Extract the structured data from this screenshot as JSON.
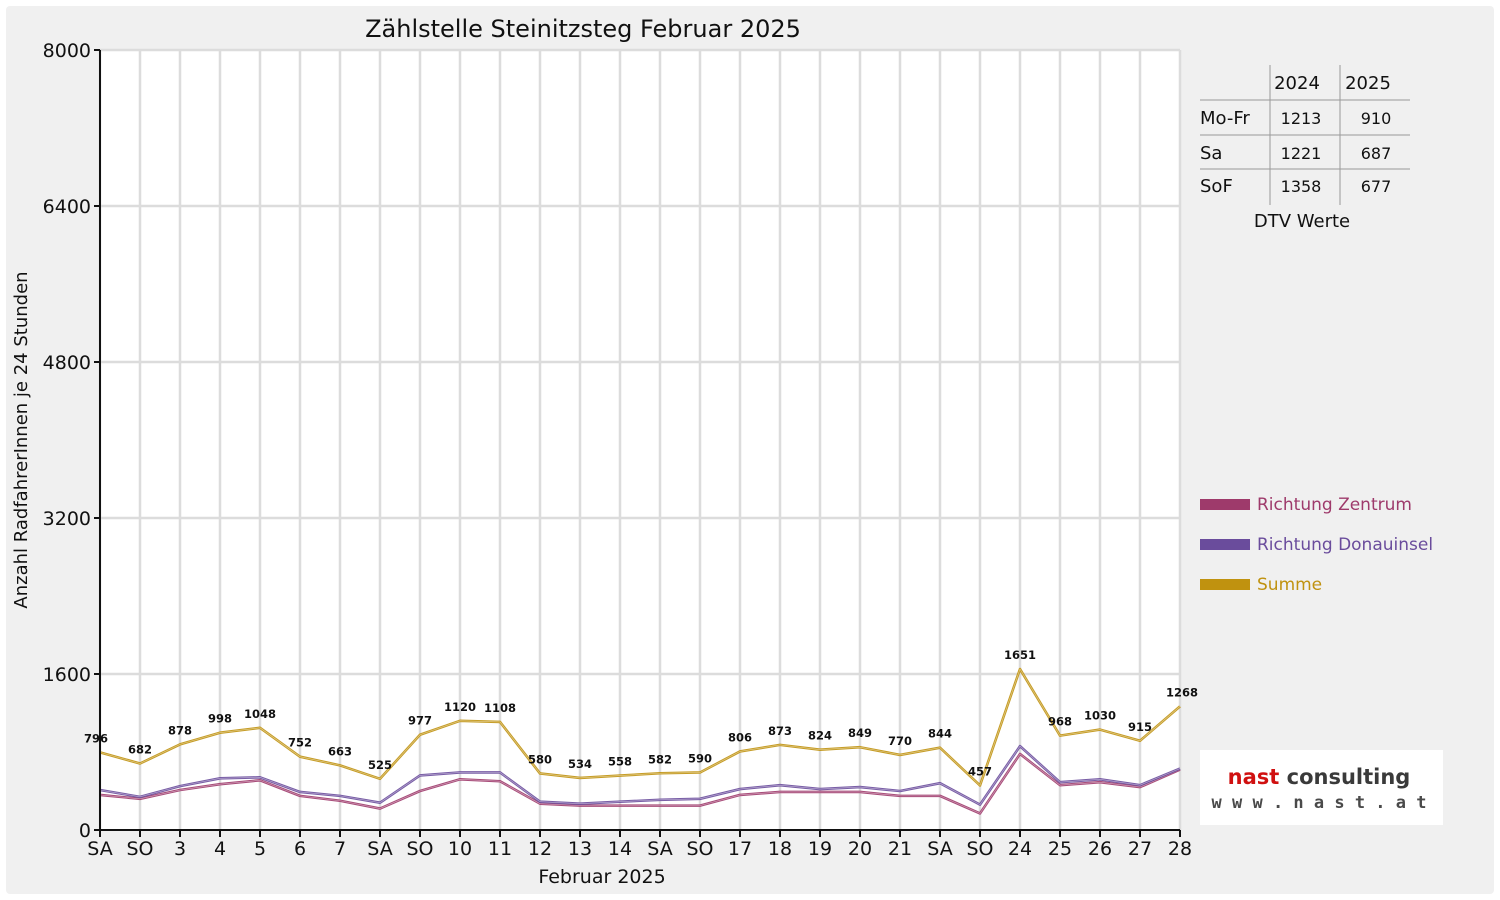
{
  "chart_data": {
    "type": "line",
    "title": "Zählstelle Steinitzsteg Februar 2025",
    "xlabel": "Februar 2025",
    "ylabel": "Anzahl RadfahrerInnen je 24 Stunden",
    "ylim": [
      0,
      8000
    ],
    "yticks": [
      "0",
      "1600",
      "3200",
      "4800",
      "6400",
      "8000"
    ],
    "grid": true,
    "legend_position": "right",
    "categories": [
      "SA",
      "SO",
      "3",
      "4",
      "5",
      "6",
      "7",
      "SA",
      "SO",
      "10",
      "11",
      "12",
      "13",
      "14",
      "SA",
      "SO",
      "17",
      "18",
      "19",
      "20",
      "21",
      "SA",
      "SO",
      "24",
      "25",
      "26",
      "27",
      "28"
    ],
    "weekend_color": "#e00000",
    "weekday_color": "#111111",
    "series": [
      {
        "name": "Richtung Zentrum",
        "color": "#9e3a6b",
        "values": [
          360,
          320,
          410,
          470,
          510,
          350,
          300,
          220,
          400,
          520,
          500,
          270,
          250,
          250,
          250,
          250,
          360,
          390,
          390,
          390,
          350,
          350,
          170,
          780,
          460,
          490,
          440,
          620
        ]
      },
      {
        "name": "Richtung Donauinsel",
        "color": "#6a4c9c",
        "values": [
          410,
          340,
          450,
          530,
          540,
          390,
          350,
          280,
          560,
          590,
          590,
          290,
          270,
          290,
          310,
          320,
          420,
          460,
          420,
          440,
          400,
          480,
          260,
          860,
          490,
          520,
          460,
          630
        ]
      },
      {
        "name": "Summe",
        "color": "#c0920f",
        "values": [
          796,
          682,
          878,
          998,
          1048,
          752,
          663,
          525,
          977,
          1120,
          1108,
          580,
          534,
          558,
          582,
          590,
          806,
          873,
          824,
          849,
          770,
          844,
          457,
          1651,
          968,
          1030,
          915,
          1268
        ]
      }
    ],
    "data_labels": [
      "796",
      "682",
      "878",
      "998",
      "1048",
      "752",
      "663",
      "525",
      "977",
      "1120",
      "1108",
      "580",
      "534",
      "558",
      "582",
      "590",
      "806",
      "873",
      "824",
      "849",
      "770",
      "844",
      "457",
      "1651",
      "968",
      "1030",
      "915",
      "1268"
    ]
  },
  "dtv_table": {
    "columns": [
      "2024",
      "2025"
    ],
    "rows": [
      {
        "label": "Mo-Fr",
        "v2024": "1213",
        "v2025": "910"
      },
      {
        "label": "Sa",
        "v2024": "1221",
        "v2025": "687"
      },
      {
        "label": "SoF",
        "v2024": "1358",
        "v2025": "677"
      }
    ],
    "caption": "DTV Werte"
  },
  "logo": {
    "text_main": "nast consulting",
    "text_sub": "w w w . n a s t . a t",
    "color_dark": "#3a3a3a",
    "color_accent": "#d01010"
  }
}
